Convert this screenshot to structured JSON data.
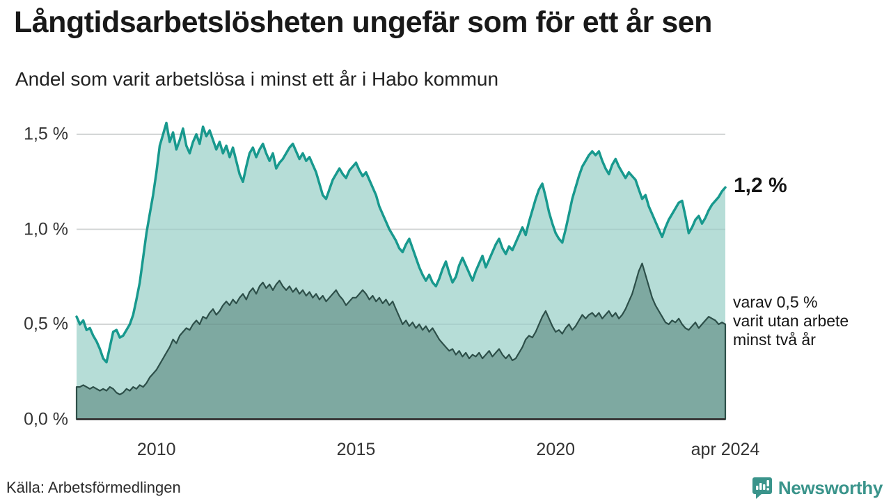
{
  "header": {
    "title": "Långtidsarbetslösheten ungefär som för ett år sen",
    "subtitle": "Andel som varit arbetslösa i minst ett år i Habo kommun"
  },
  "chart_data": {
    "type": "area",
    "title": "Långtidsarbetslösheten ungefär som för ett år sen",
    "subtitle": "Andel som varit arbetslösa i minst ett år i Habo kommun",
    "unit": "%",
    "x_start": "2008-01",
    "x_end": "2024-04",
    "frequency": "monthly",
    "ylim": [
      0,
      1.6
    ],
    "grid": "horizontal",
    "y_ticks": [
      {
        "value": 0.0,
        "label": "0,0 %"
      },
      {
        "value": 0.5,
        "label": "0,5 %"
      },
      {
        "value": 1.0,
        "label": "1,0 %"
      },
      {
        "value": 1.5,
        "label": "1,5 %"
      }
    ],
    "x_ticks": [
      {
        "month_index": 24,
        "label": "2010"
      },
      {
        "month_index": 84,
        "label": "2015"
      },
      {
        "month_index": 144,
        "label": "2020"
      },
      {
        "month_index": 195,
        "label": "apr 2024"
      }
    ],
    "series": [
      {
        "name": "Andel arbetslösa minst ett år",
        "line_color": "#18998e",
        "fill_color": "#b6ddd7",
        "last_value_label": "1,2 %",
        "values": [
          0.54,
          0.5,
          0.52,
          0.47,
          0.48,
          0.44,
          0.41,
          0.37,
          0.32,
          0.3,
          0.38,
          0.46,
          0.47,
          0.43,
          0.44,
          0.47,
          0.5,
          0.55,
          0.63,
          0.72,
          0.85,
          0.98,
          1.08,
          1.18,
          1.3,
          1.44,
          1.5,
          1.56,
          1.46,
          1.51,
          1.42,
          1.47,
          1.53,
          1.44,
          1.4,
          1.46,
          1.5,
          1.45,
          1.54,
          1.49,
          1.52,
          1.47,
          1.42,
          1.46,
          1.4,
          1.44,
          1.38,
          1.43,
          1.36,
          1.29,
          1.25,
          1.33,
          1.4,
          1.43,
          1.38,
          1.42,
          1.45,
          1.4,
          1.36,
          1.4,
          1.32,
          1.35,
          1.37,
          1.4,
          1.43,
          1.45,
          1.41,
          1.37,
          1.4,
          1.36,
          1.38,
          1.34,
          1.3,
          1.24,
          1.18,
          1.16,
          1.21,
          1.26,
          1.29,
          1.32,
          1.29,
          1.27,
          1.31,
          1.33,
          1.35,
          1.31,
          1.28,
          1.3,
          1.26,
          1.22,
          1.18,
          1.12,
          1.08,
          1.04,
          1.0,
          0.97,
          0.94,
          0.9,
          0.88,
          0.92,
          0.95,
          0.9,
          0.85,
          0.8,
          0.76,
          0.73,
          0.76,
          0.72,
          0.7,
          0.74,
          0.79,
          0.83,
          0.77,
          0.72,
          0.75,
          0.81,
          0.85,
          0.81,
          0.77,
          0.73,
          0.78,
          0.82,
          0.86,
          0.8,
          0.84,
          0.88,
          0.92,
          0.95,
          0.9,
          0.87,
          0.91,
          0.89,
          0.93,
          0.97,
          1.01,
          0.97,
          1.04,
          1.1,
          1.16,
          1.21,
          1.24,
          1.17,
          1.09,
          1.03,
          0.98,
          0.95,
          0.93,
          1.0,
          1.08,
          1.16,
          1.22,
          1.28,
          1.33,
          1.36,
          1.39,
          1.41,
          1.39,
          1.41,
          1.36,
          1.32,
          1.29,
          1.34,
          1.37,
          1.33,
          1.3,
          1.27,
          1.3,
          1.28,
          1.26,
          1.21,
          1.16,
          1.18,
          1.12,
          1.08,
          1.04,
          1.0,
          0.96,
          1.01,
          1.05,
          1.08,
          1.11,
          1.14,
          1.15,
          1.07,
          0.98,
          1.01,
          1.05,
          1.07,
          1.03,
          1.06,
          1.1,
          1.13,
          1.15,
          1.17,
          1.2,
          1.22
        ]
      },
      {
        "name": "varav utan arbete minst två år",
        "line_color": "#2d4f49",
        "fill_color": "#7ea9a1",
        "last_value_label": "varav 0,5 %",
        "values": [
          0.17,
          0.17,
          0.18,
          0.17,
          0.16,
          0.17,
          0.16,
          0.15,
          0.16,
          0.15,
          0.17,
          0.16,
          0.14,
          0.13,
          0.14,
          0.16,
          0.15,
          0.17,
          0.16,
          0.18,
          0.17,
          0.19,
          0.22,
          0.24,
          0.26,
          0.29,
          0.32,
          0.35,
          0.38,
          0.42,
          0.4,
          0.44,
          0.46,
          0.48,
          0.47,
          0.5,
          0.52,
          0.5,
          0.54,
          0.53,
          0.56,
          0.58,
          0.55,
          0.57,
          0.6,
          0.62,
          0.6,
          0.63,
          0.61,
          0.64,
          0.66,
          0.63,
          0.67,
          0.69,
          0.66,
          0.7,
          0.72,
          0.69,
          0.71,
          0.68,
          0.71,
          0.73,
          0.7,
          0.68,
          0.7,
          0.67,
          0.69,
          0.66,
          0.68,
          0.65,
          0.67,
          0.64,
          0.66,
          0.63,
          0.65,
          0.62,
          0.64,
          0.66,
          0.68,
          0.65,
          0.63,
          0.6,
          0.62,
          0.64,
          0.64,
          0.66,
          0.68,
          0.66,
          0.63,
          0.65,
          0.62,
          0.64,
          0.61,
          0.63,
          0.6,
          0.62,
          0.58,
          0.54,
          0.5,
          0.52,
          0.49,
          0.51,
          0.48,
          0.5,
          0.47,
          0.49,
          0.46,
          0.48,
          0.45,
          0.42,
          0.4,
          0.38,
          0.36,
          0.37,
          0.34,
          0.36,
          0.33,
          0.35,
          0.32,
          0.34,
          0.33,
          0.35,
          0.32,
          0.34,
          0.36,
          0.33,
          0.35,
          0.37,
          0.34,
          0.32,
          0.34,
          0.31,
          0.32,
          0.35,
          0.38,
          0.42,
          0.44,
          0.43,
          0.46,
          0.5,
          0.54,
          0.57,
          0.53,
          0.49,
          0.46,
          0.47,
          0.45,
          0.48,
          0.5,
          0.47,
          0.49,
          0.52,
          0.55,
          0.53,
          0.55,
          0.56,
          0.54,
          0.56,
          0.53,
          0.55,
          0.57,
          0.54,
          0.56,
          0.53,
          0.55,
          0.58,
          0.62,
          0.66,
          0.72,
          0.78,
          0.82,
          0.76,
          0.7,
          0.64,
          0.6,
          0.57,
          0.54,
          0.51,
          0.5,
          0.52,
          0.51,
          0.53,
          0.5,
          0.48,
          0.47,
          0.49,
          0.51,
          0.48,
          0.5,
          0.52,
          0.54,
          0.53,
          0.52,
          0.5,
          0.51,
          0.5
        ]
      }
    ],
    "annotations": {
      "end_value": "1,2 %",
      "breakdown": "varav 0,5 %\nvarit utan arbete\nminst två år"
    }
  },
  "footer": {
    "source": "Källa: Arbetsförmedlingen",
    "brand_name": "Newsworthy"
  },
  "colors": {
    "line_primary": "#18998e",
    "fill_primary": "#b6ddd7",
    "line_secondary": "#2d4f49",
    "fill_secondary": "#7ea9a1",
    "gridline": "#e2e2e2",
    "axis": "#3a3a3a",
    "brand": "#3a948b"
  }
}
